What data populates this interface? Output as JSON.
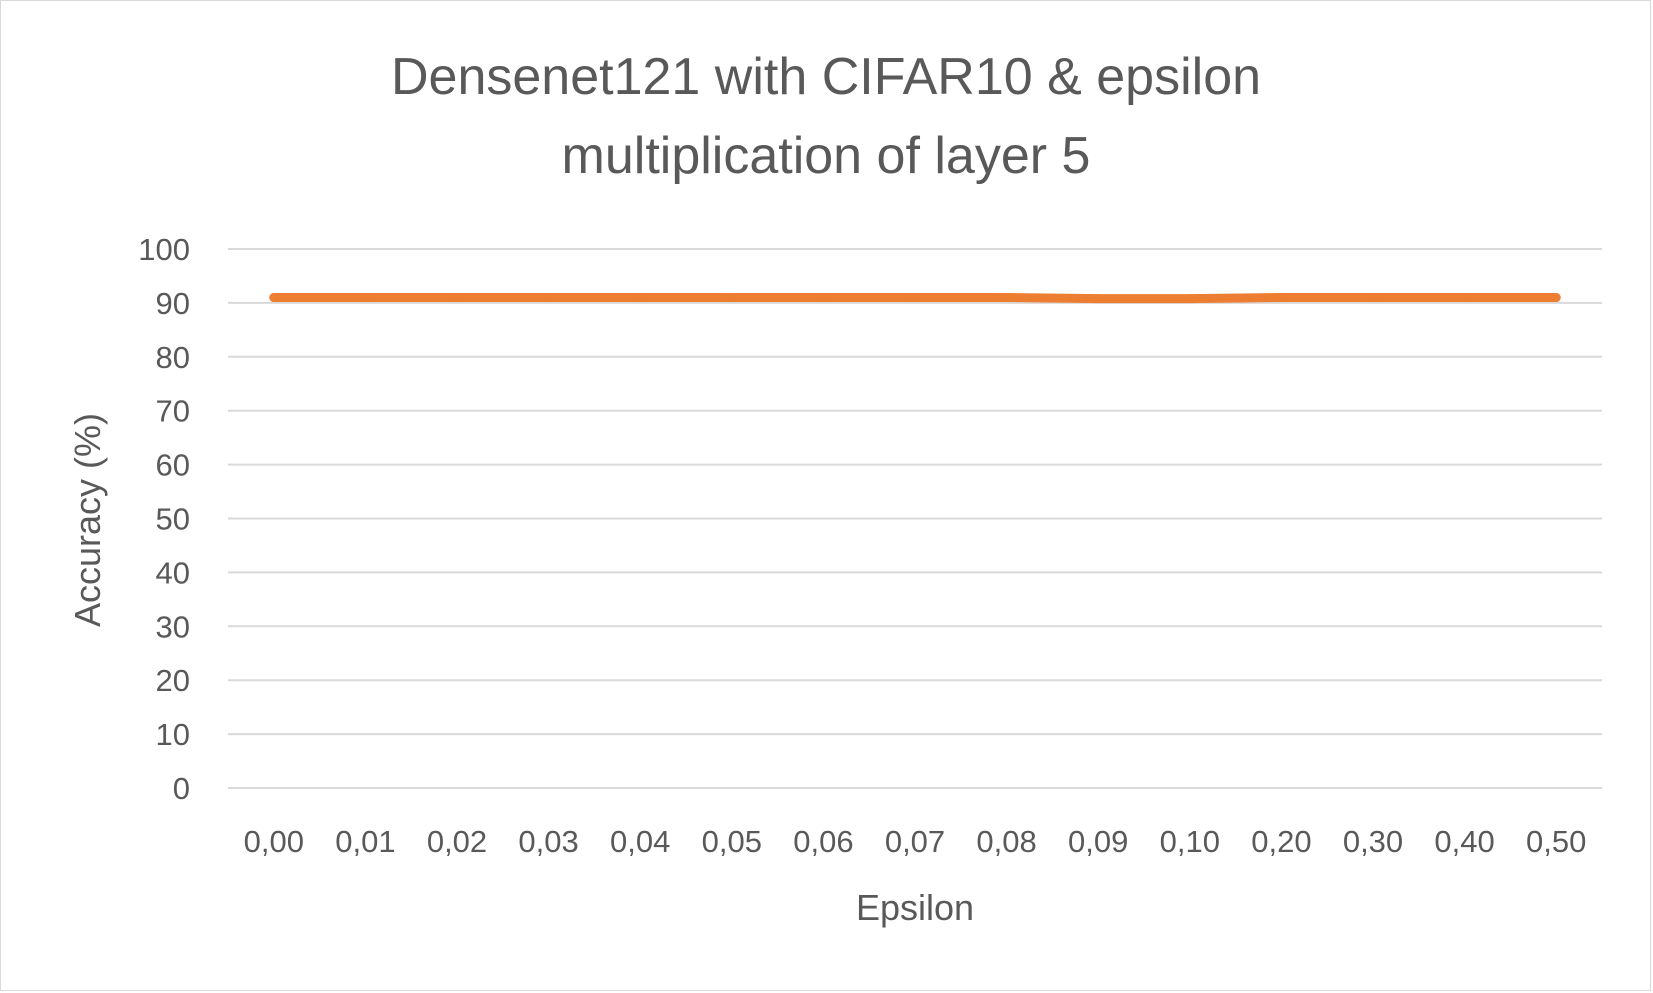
{
  "chart_data": {
    "type": "line",
    "title_lines": [
      "Densenet121 with CIFAR10 & epsilon",
      "multiplication of layer 5"
    ],
    "xlabel": "Epsilon",
    "ylabel": "Accuracy (%)",
    "categories": [
      "0,00",
      "0,01",
      "0,02",
      "0,03",
      "0,04",
      "0,05",
      "0,06",
      "0,07",
      "0,08",
      "0,09",
      "0,10",
      "0,20",
      "0,30",
      "0,40",
      "0,50"
    ],
    "y_ticks": [
      "0",
      "10",
      "20",
      "30",
      "40",
      "50",
      "60",
      "70",
      "80",
      "90",
      "100"
    ],
    "ylim": [
      0,
      100
    ],
    "grid": true,
    "legend": "none",
    "series": [
      {
        "color": "#ed7d31",
        "values": [
          91.0,
          91.0,
          91.0,
          91.0,
          91.0,
          91.0,
          91.0,
          91.0,
          91.0,
          90.8,
          90.8,
          91.0,
          91.0,
          91.0,
          91.0
        ]
      }
    ],
    "gridline_color": "#d9d9d9",
    "text_color": "#595959"
  }
}
